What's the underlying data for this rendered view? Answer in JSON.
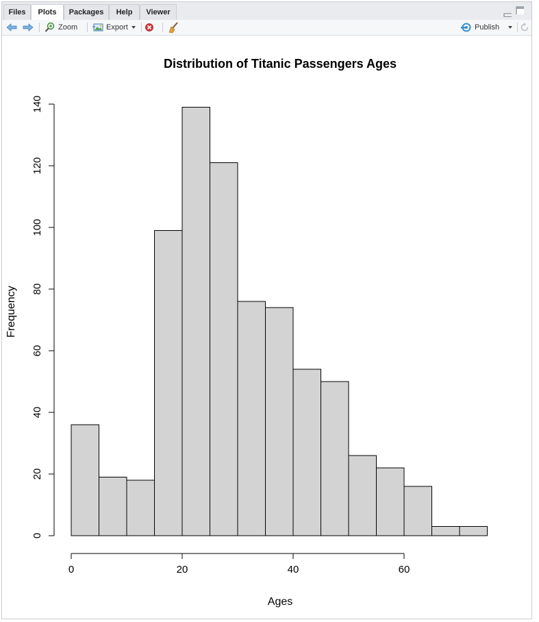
{
  "tabs": [
    {
      "label": "Files",
      "active": false
    },
    {
      "label": "Plots",
      "active": true
    },
    {
      "label": "Packages",
      "active": false
    },
    {
      "label": "Help",
      "active": false
    },
    {
      "label": "Viewer",
      "active": false
    }
  ],
  "toolbar": {
    "zoom_label": "Zoom",
    "export_label": "Export",
    "publish_label": "Publish",
    "icons": [
      "back-arrow-icon",
      "forward-arrow-icon",
      "zoom-icon",
      "export-icon",
      "remove-plot-icon",
      "broom-icon",
      "publish-icon",
      "refresh-icon"
    ]
  },
  "colors": {
    "bar_fill": "#d3d3d3",
    "bar_stroke": "#000000",
    "accent": "#3a7fc1"
  },
  "chart_data": {
    "type": "bar",
    "title": "Distribution of Titanic Passengers Ages",
    "xlabel": "Ages",
    "ylabel": "Frequency",
    "bin_edges": [
      0,
      5,
      10,
      15,
      20,
      25,
      30,
      35,
      40,
      45,
      50,
      55,
      60,
      65,
      70,
      75
    ],
    "values": [
      36,
      19,
      18,
      99,
      139,
      121,
      76,
      74,
      54,
      50,
      26,
      22,
      16,
      3,
      3
    ],
    "x_ticks": [
      "0",
      "20",
      "40",
      "60"
    ],
    "y_ticks": [
      "0",
      "20",
      "40",
      "60",
      "80",
      "100",
      "120",
      "140"
    ],
    "xlim": [
      0,
      75
    ],
    "ylim": [
      0,
      140
    ],
    "grid": false,
    "legend": "none"
  }
}
